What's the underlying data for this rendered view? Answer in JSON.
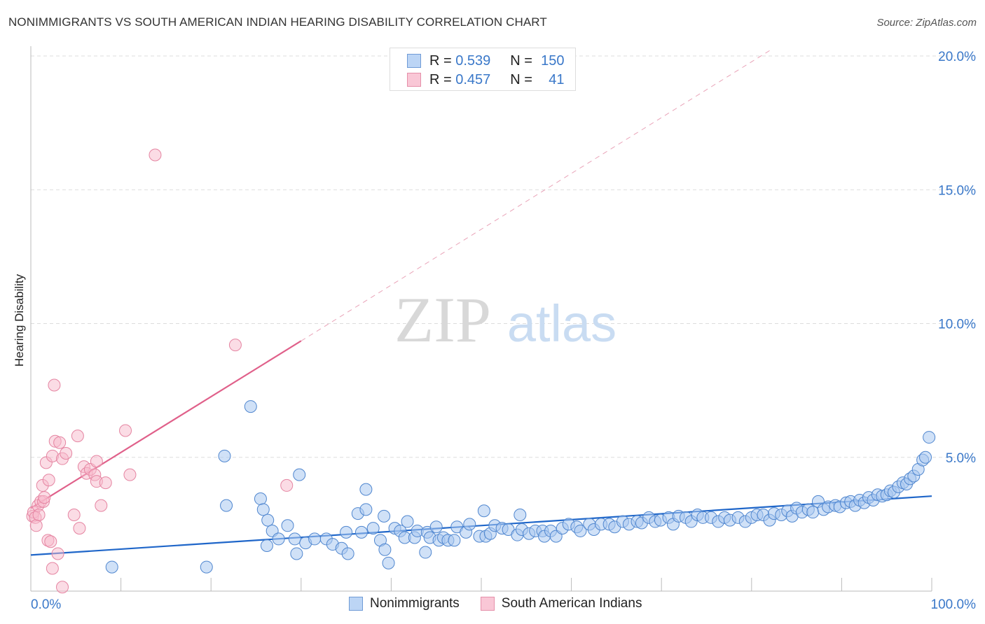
{
  "title": "NONIMMIGRANTS VS SOUTH AMERICAN INDIAN HEARING DISABILITY CORRELATION CHART",
  "source": "Source: ZipAtlas.com",
  "watermark": {
    "zip": "ZIP",
    "atlas": "atlas"
  },
  "legend": {
    "rows": [
      {
        "r_label": "R =",
        "r_value": "0.539",
        "n_label": "N =",
        "n_value": "150"
      },
      {
        "r_label": "R =",
        "r_value": "0.457",
        "n_label": "N =",
        "n_value": "41"
      }
    ]
  },
  "bottom_legend": [
    "Nonimmigrants",
    "South American Indians"
  ],
  "colors": {
    "blue_fill": "#a9c8f0",
    "blue_stroke": "#4f86cf",
    "blue_line": "#1f66c9",
    "pink_fill": "#f7b9cb",
    "pink_stroke": "#e585a2",
    "pink_line": "#e0608a",
    "tick_label": "#3a78c9"
  },
  "chart_data": {
    "type": "scatter",
    "xlabel": "",
    "ylabel": "Hearing Disability",
    "xlim": [
      0,
      100
    ],
    "ylim": [
      0,
      20
    ],
    "x_tick_labels": [
      "0.0%",
      "100.0%"
    ],
    "y_ticks": [
      5,
      10,
      15,
      20
    ],
    "y_tick_labels": [
      "5.0%",
      "10.0%",
      "15.0%",
      "20.0%"
    ],
    "grid": true,
    "series": [
      {
        "name": "Nonimmigrants",
        "r": 0.539,
        "n": 150,
        "trend": {
          "x": [
            0,
            100
          ],
          "y": [
            1.35,
            3.55
          ],
          "dashed_extension": false
        },
        "points": [
          [
            9,
            0.9
          ],
          [
            19.5,
            0.9
          ],
          [
            21.5,
            5.05
          ],
          [
            21.7,
            3.2
          ],
          [
            24.4,
            6.9
          ],
          [
            25.5,
            3.45
          ],
          [
            25.8,
            3.05
          ],
          [
            26.3,
            2.65
          ],
          [
            26.2,
            1.7
          ],
          [
            26.8,
            2.25
          ],
          [
            27.5,
            1.95
          ],
          [
            28.5,
            2.45
          ],
          [
            29.3,
            1.95
          ],
          [
            29.5,
            1.4
          ],
          [
            29.8,
            4.35
          ],
          [
            30.5,
            1.8
          ],
          [
            31.5,
            1.95
          ],
          [
            32.8,
            1.95
          ],
          [
            33.5,
            1.75
          ],
          [
            34.5,
            1.6
          ],
          [
            35,
            2.2
          ],
          [
            35.2,
            1.4
          ],
          [
            36.3,
            2.9
          ],
          [
            36.7,
            2.2
          ],
          [
            37.2,
            3.8
          ],
          [
            37.2,
            3.05
          ],
          [
            38,
            2.35
          ],
          [
            38.8,
            1.9
          ],
          [
            39.2,
            2.8
          ],
          [
            39.3,
            1.55
          ],
          [
            39.7,
            1.05
          ],
          [
            40.4,
            2.35
          ],
          [
            41,
            2.25
          ],
          [
            41.5,
            2.0
          ],
          [
            41.8,
            2.6
          ],
          [
            42.6,
            2.0
          ],
          [
            42.9,
            2.25
          ],
          [
            43.8,
            1.45
          ],
          [
            44,
            2.2
          ],
          [
            44.3,
            2.0
          ],
          [
            45,
            2.4
          ],
          [
            45.3,
            1.9
          ],
          [
            45.8,
            2.0
          ],
          [
            46.3,
            1.9
          ],
          [
            47,
            1.9
          ],
          [
            47.3,
            2.4
          ],
          [
            48.3,
            2.2
          ],
          [
            48.7,
            2.5
          ],
          [
            49.8,
            2.05
          ],
          [
            50.3,
            3.0
          ],
          [
            50.5,
            2.05
          ],
          [
            51,
            2.15
          ],
          [
            51.5,
            2.45
          ],
          [
            52.3,
            2.35
          ],
          [
            53,
            2.3
          ],
          [
            54,
            2.1
          ],
          [
            54.3,
            2.85
          ],
          [
            54.5,
            2.3
          ],
          [
            55.3,
            2.15
          ],
          [
            56,
            2.25
          ],
          [
            56.8,
            2.25
          ],
          [
            57,
            2.05
          ],
          [
            57.7,
            2.25
          ],
          [
            58.3,
            2.05
          ],
          [
            59,
            2.35
          ],
          [
            59.7,
            2.5
          ],
          [
            60.6,
            2.4
          ],
          [
            61,
            2.25
          ],
          [
            62,
            2.5
          ],
          [
            62.5,
            2.3
          ],
          [
            63.3,
            2.5
          ],
          [
            64.2,
            2.5
          ],
          [
            64.8,
            2.4
          ],
          [
            65.7,
            2.6
          ],
          [
            66.4,
            2.5
          ],
          [
            67.3,
            2.6
          ],
          [
            67.8,
            2.55
          ],
          [
            68.6,
            2.75
          ],
          [
            69.3,
            2.6
          ],
          [
            69.9,
            2.65
          ],
          [
            70.8,
            2.75
          ],
          [
            71.3,
            2.5
          ],
          [
            71.9,
            2.8
          ],
          [
            72.7,
            2.75
          ],
          [
            73.3,
            2.6
          ],
          [
            74,
            2.85
          ],
          [
            74.6,
            2.75
          ],
          [
            75.5,
            2.75
          ],
          [
            76.3,
            2.6
          ],
          [
            77,
            2.75
          ],
          [
            77.6,
            2.65
          ],
          [
            78.5,
            2.75
          ],
          [
            79.3,
            2.6
          ],
          [
            80,
            2.75
          ],
          [
            80.6,
            2.85
          ],
          [
            81.3,
            2.85
          ],
          [
            82,
            2.65
          ],
          [
            82.5,
            2.9
          ],
          [
            83.3,
            2.85
          ],
          [
            84,
            3.0
          ],
          [
            84.5,
            2.8
          ],
          [
            85,
            3.1
          ],
          [
            85.6,
            2.95
          ],
          [
            86.3,
            3.05
          ],
          [
            86.8,
            2.95
          ],
          [
            87.4,
            3.35
          ],
          [
            88,
            3.05
          ],
          [
            88.5,
            3.15
          ],
          [
            89.3,
            3.2
          ],
          [
            89.8,
            3.15
          ],
          [
            90.5,
            3.3
          ],
          [
            91,
            3.35
          ],
          [
            91.5,
            3.2
          ],
          [
            92,
            3.4
          ],
          [
            92.5,
            3.3
          ],
          [
            93,
            3.5
          ],
          [
            93.5,
            3.4
          ],
          [
            94,
            3.6
          ],
          [
            94.5,
            3.55
          ],
          [
            95,
            3.6
          ],
          [
            95.4,
            3.75
          ],
          [
            95.8,
            3.7
          ],
          [
            96.3,
            3.9
          ],
          [
            96.8,
            4.05
          ],
          [
            97.2,
            4.0
          ],
          [
            97.6,
            4.2
          ],
          [
            98,
            4.3
          ],
          [
            98.5,
            4.55
          ],
          [
            99,
            4.9
          ],
          [
            99.3,
            5.0
          ],
          [
            99.7,
            5.75
          ]
        ]
      },
      {
        "name": "South American Indians",
        "r": 0.457,
        "n": 41,
        "trend": {
          "x": [
            0,
            30
          ],
          "y": [
            3.1,
            9.35
          ],
          "dashed_extension": {
            "x": [
              30,
              82
            ],
            "y": [
              9.35,
              20.2
            ]
          }
        },
        "points": [
          [
            0.2,
            2.8
          ],
          [
            0.3,
            2.95
          ],
          [
            0.5,
            2.75
          ],
          [
            0.6,
            2.45
          ],
          [
            0.8,
            3.2
          ],
          [
            0.9,
            2.85
          ],
          [
            1.1,
            3.35
          ],
          [
            1.3,
            3.95
          ],
          [
            1.4,
            3.35
          ],
          [
            1.5,
            3.5
          ],
          [
            1.7,
            4.8
          ],
          [
            1.9,
            1.9
          ],
          [
            2.0,
            4.15
          ],
          [
            2.2,
            1.85
          ],
          [
            2.4,
            5.05
          ],
          [
            2.4,
            0.85
          ],
          [
            2.6,
            7.7
          ],
          [
            2.7,
            5.6
          ],
          [
            3.0,
            1.4
          ],
          [
            3.2,
            5.55
          ],
          [
            3.5,
            4.95
          ],
          [
            3.5,
            0.15
          ],
          [
            3.9,
            5.15
          ],
          [
            4.8,
            2.85
          ],
          [
            5.2,
            5.8
          ],
          [
            5.4,
            2.35
          ],
          [
            5.9,
            4.65
          ],
          [
            6.2,
            4.4
          ],
          [
            6.6,
            4.55
          ],
          [
            7.1,
            4.35
          ],
          [
            7.3,
            4.1
          ],
          [
            7.3,
            4.85
          ],
          [
            7.8,
            3.2
          ],
          [
            8.3,
            4.05
          ],
          [
            10.5,
            6.0
          ],
          [
            11.0,
            4.35
          ],
          [
            13.8,
            16.3
          ],
          [
            22.7,
            9.2
          ],
          [
            28.4,
            3.95
          ]
        ]
      }
    ]
  }
}
